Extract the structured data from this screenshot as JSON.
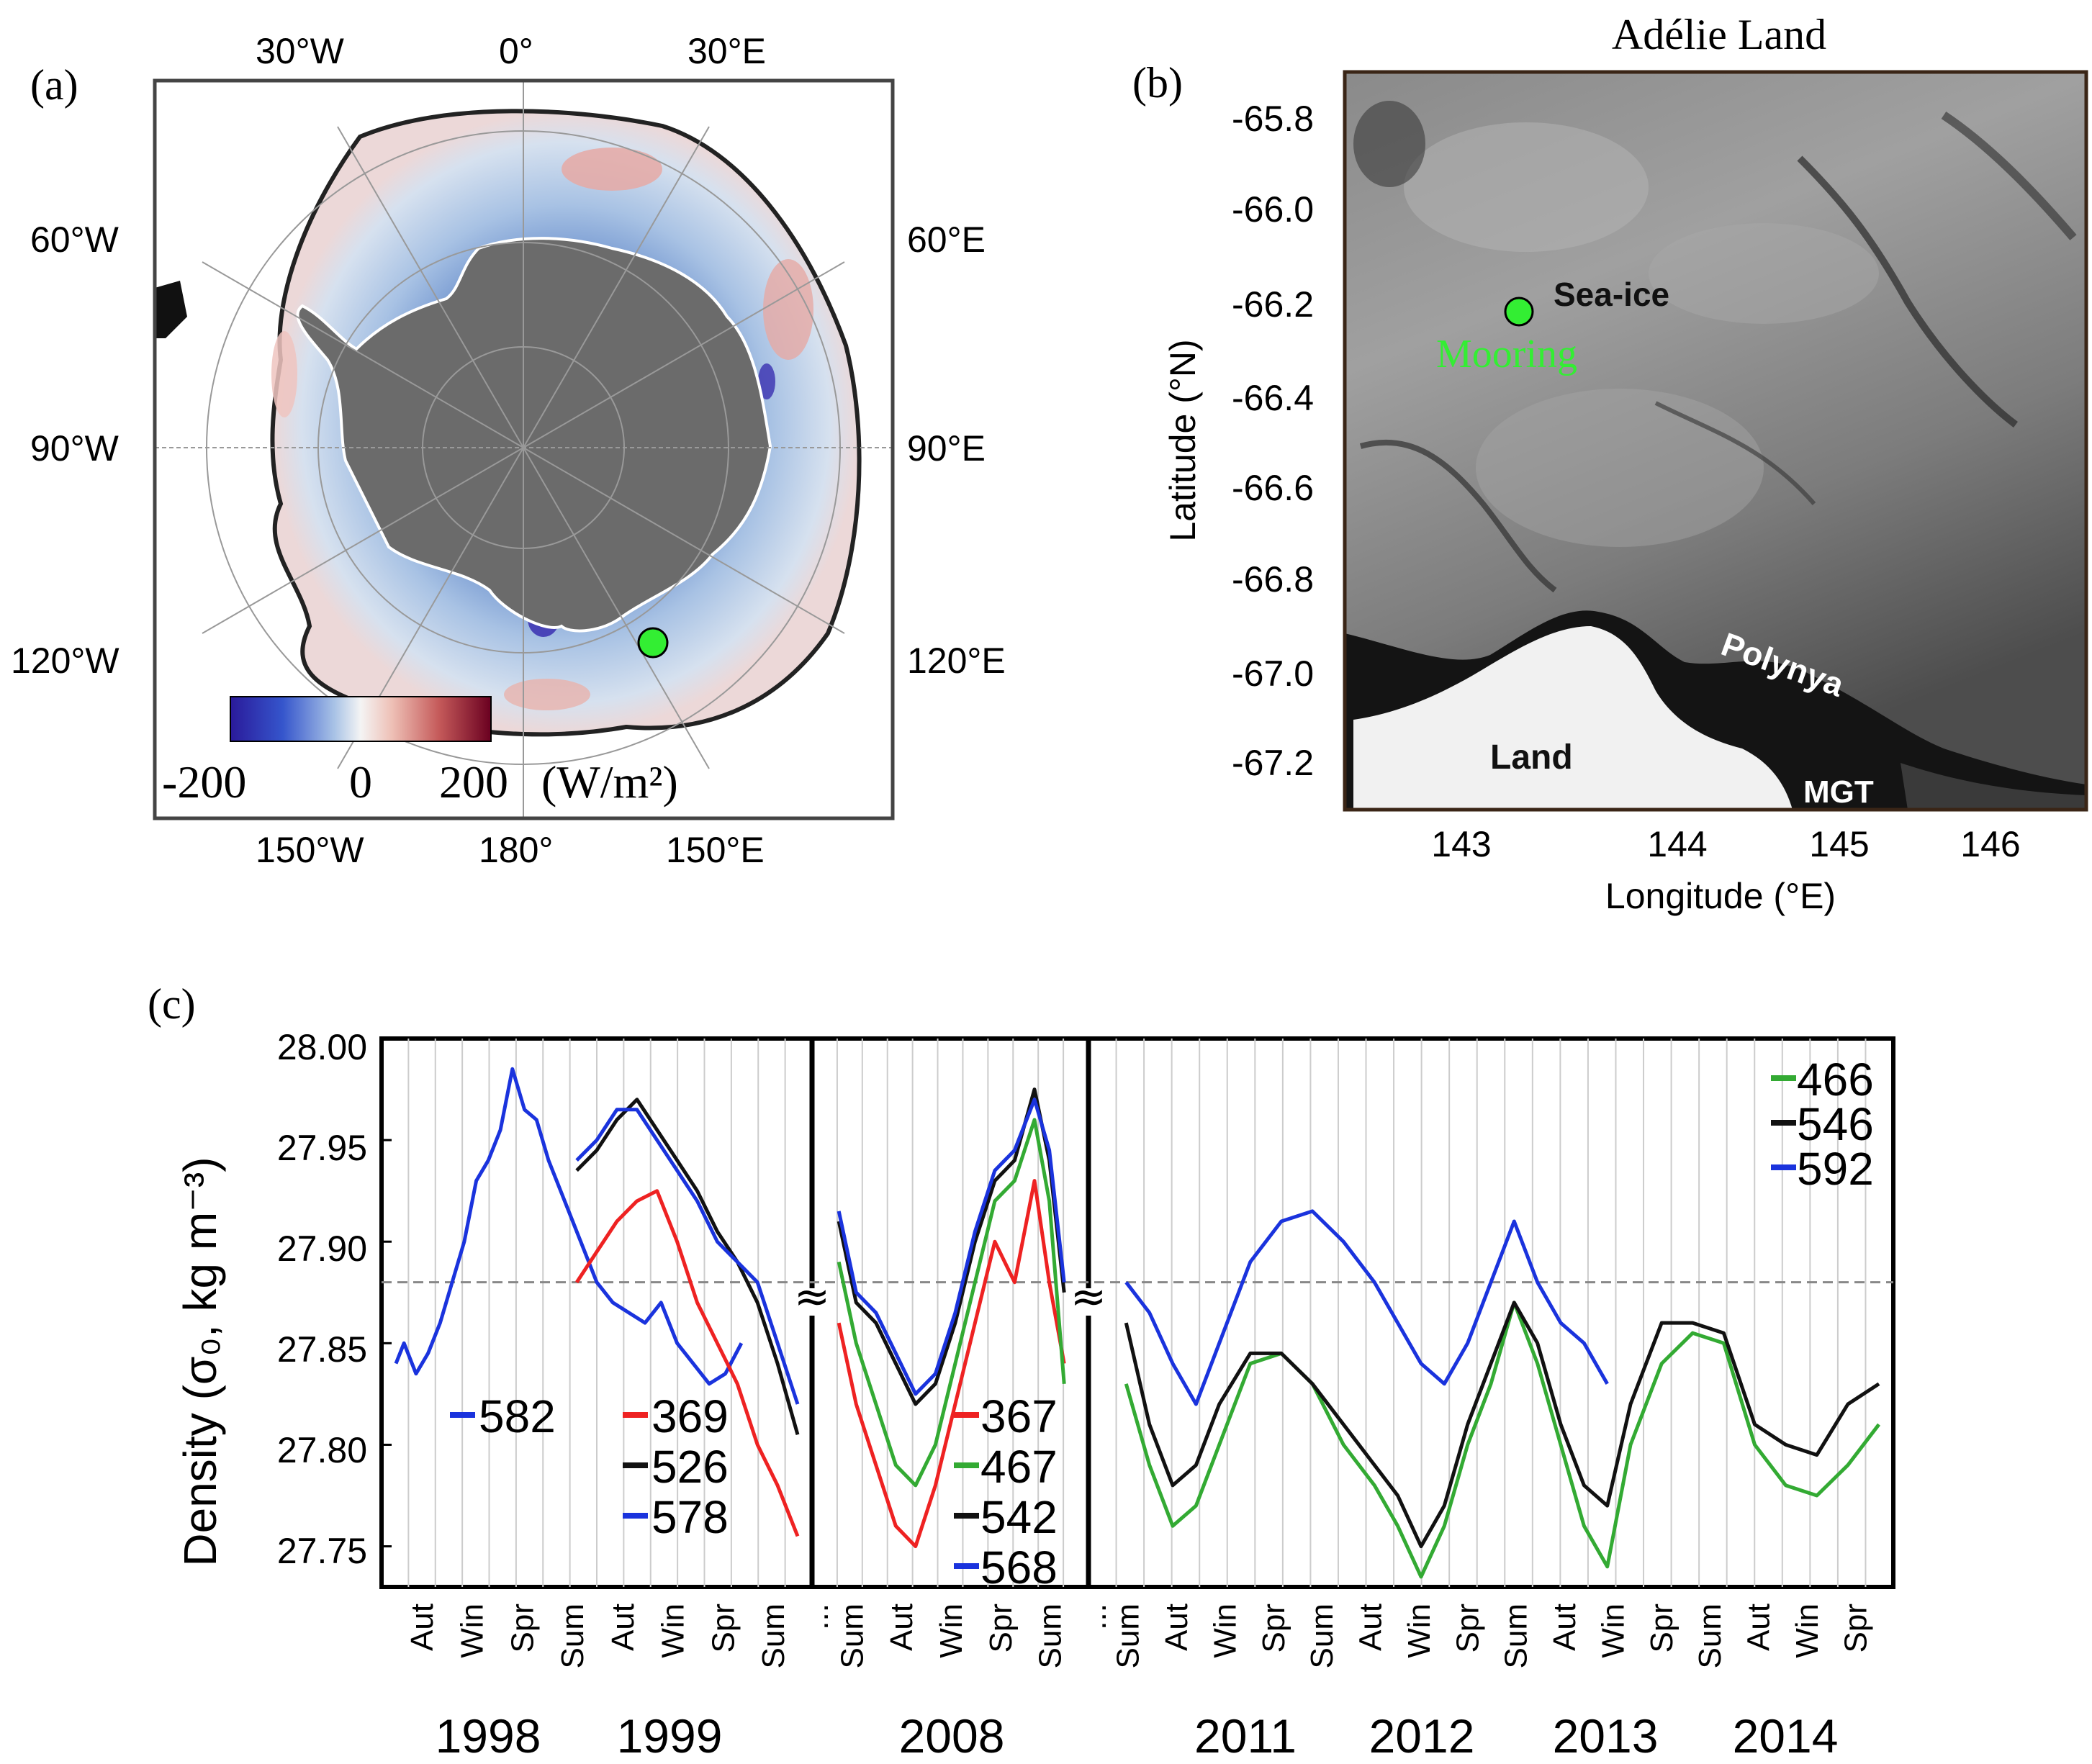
{
  "panel_a": {
    "label": "(a)",
    "lon_labels": {
      "w30": "30°W",
      "zero": "0°",
      "e30": "30°E",
      "w60": "60°W",
      "e60": "60°E",
      "w90": "90°W",
      "e90": "90°E",
      "w120": "120°W",
      "e120": "120°E",
      "w150": "150°W",
      "d180": "180°",
      "e150": "150°E"
    },
    "colorbar": {
      "min": "-200",
      "mid": "0",
      "max": "200",
      "unit": "(W/m²)"
    },
    "colors": {
      "land": "#6b6b6b",
      "cold": "#2a1a9a",
      "mid": "#f2f2f2",
      "warm": "#7a0020",
      "marker": "#33ee33"
    }
  },
  "panel_b": {
    "label": "(b)",
    "title": "Adélie Land",
    "ylabel": "Latitude (°N)",
    "xlabel": "Longitude (°E)",
    "yticks": [
      "-65.8",
      "-66.0",
      "-66.2",
      "-66.4",
      "-66.6",
      "-66.8",
      "-67.0",
      "-67.2"
    ],
    "xticks": [
      "143",
      "144",
      "145",
      "146"
    ],
    "annotations": {
      "sea_ice": "Sea-ice",
      "mooring": "Mooring",
      "polynya": "Polynya",
      "land": "Land",
      "mgt": "MGT"
    }
  },
  "chart_data": [
    {
      "type": "line",
      "title": "(c)",
      "ylabel": "Density (σ₀, kg m⁻³)",
      "ylim": [
        27.73,
        28.0
      ],
      "yticks": [
        "28.00",
        "27.95",
        "27.90",
        "27.85",
        "27.80",
        "27.75"
      ],
      "reference_line": 27.88,
      "years": [
        "1998",
        "1999",
        "2008",
        "2011",
        "2012",
        "2013",
        "2014"
      ],
      "seasons_1": [
        "Aut",
        "Win",
        "Spr",
        "Sum",
        "Aut",
        "Win",
        "Spr",
        "Sum"
      ],
      "seasons_2": [
        "Sum",
        "Aut",
        "Win",
        "Spr",
        "Sum"
      ],
      "seasons_3": [
        "Sum",
        "Aut",
        "Win",
        "Spr",
        "Sum",
        "Aut",
        "Win",
        "Spr",
        "Sum",
        "Aut",
        "Win",
        "Spr",
        "Sum",
        "Aut",
        "Win",
        "Spr"
      ],
      "ellipsis": "...",
      "segments": [
        {
          "name": "1998-1999",
          "series": [
            {
              "name": "582",
              "color": "#1a33dd",
              "x": [
                0.0,
                0.02,
                0.05,
                0.08,
                0.11,
                0.14,
                0.17,
                0.2,
                0.23,
                0.26,
                0.29,
                0.32,
                0.35,
                0.38,
                0.42,
                0.46,
                0.5,
                0.54,
                0.58,
                0.62,
                0.66,
                0.7,
                0.74,
                0.78,
                0.82,
                0.86
              ],
              "y": [
                27.84,
                27.85,
                27.835,
                27.845,
                27.86,
                27.88,
                27.9,
                27.93,
                27.94,
                27.955,
                27.985,
                27.965,
                27.96,
                27.94,
                27.92,
                27.9,
                27.88,
                27.87,
                27.865,
                27.86,
                27.87,
                27.85,
                27.84,
                27.83,
                27.835,
                27.85
              ]
            },
            {
              "name": "369",
              "color": "#ee2222",
              "x": [
                0.45,
                0.5,
                0.55,
                0.6,
                0.65,
                0.7,
                0.75,
                0.8,
                0.85,
                0.9,
                0.95,
                1.0
              ],
              "y": [
                27.88,
                27.895,
                27.91,
                27.92,
                27.925,
                27.9,
                27.87,
                27.85,
                27.83,
                27.8,
                27.78,
                27.755
              ]
            },
            {
              "name": "526",
              "color": "#111111",
              "x": [
                0.45,
                0.5,
                0.55,
                0.6,
                0.65,
                0.7,
                0.75,
                0.8,
                0.85,
                0.9,
                0.95,
                1.0
              ],
              "y": [
                27.935,
                27.945,
                27.96,
                27.97,
                27.955,
                27.94,
                27.925,
                27.905,
                27.89,
                27.87,
                27.84,
                27.805
              ]
            },
            {
              "name": "578",
              "color": "#1a33dd",
              "x": [
                0.45,
                0.5,
                0.55,
                0.6,
                0.65,
                0.7,
                0.75,
                0.8,
                0.85,
                0.9,
                0.95,
                1.0
              ],
              "y": [
                27.94,
                27.95,
                27.965,
                27.965,
                27.95,
                27.935,
                27.92,
                27.9,
                27.89,
                27.88,
                27.85,
                27.82
              ]
            }
          ],
          "legend": [
            "582",
            "369",
            "526",
            "578"
          ]
        },
        {
          "name": "2008",
          "series": [
            {
              "name": "367",
              "color": "#ee2222",
              "x": [
                0.05,
                0.12,
                0.2,
                0.28,
                0.36,
                0.44,
                0.52,
                0.6,
                0.68,
                0.76,
                0.84,
                0.9,
                0.96
              ],
              "y": [
                27.86,
                27.82,
                27.79,
                27.76,
                27.75,
                27.78,
                27.82,
                27.86,
                27.9,
                27.88,
                27.93,
                27.88,
                27.84
              ]
            },
            {
              "name": "467",
              "color": "#33aa33",
              "x": [
                0.05,
                0.12,
                0.2,
                0.28,
                0.36,
                0.44,
                0.52,
                0.6,
                0.68,
                0.76,
                0.84,
                0.9,
                0.96
              ],
              "y": [
                27.89,
                27.85,
                27.82,
                27.79,
                27.78,
                27.8,
                27.84,
                27.88,
                27.92,
                27.93,
                27.96,
                27.92,
                27.83
              ]
            },
            {
              "name": "542",
              "color": "#111111",
              "x": [
                0.05,
                0.12,
                0.2,
                0.28,
                0.36,
                0.44,
                0.52,
                0.6,
                0.68,
                0.76,
                0.84,
                0.9,
                0.96
              ],
              "y": [
                27.91,
                27.87,
                27.86,
                27.84,
                27.82,
                27.83,
                27.86,
                27.9,
                27.93,
                27.94,
                27.975,
                27.94,
                27.875
              ]
            },
            {
              "name": "568",
              "color": "#1a33dd",
              "x": [
                0.05,
                0.12,
                0.2,
                0.28,
                0.36,
                0.44,
                0.52,
                0.6,
                0.68,
                0.76,
                0.84,
                0.9,
                0.96
              ],
              "y": [
                27.915,
                27.875,
                27.865,
                27.845,
                27.825,
                27.835,
                27.865,
                27.905,
                27.935,
                27.945,
                27.97,
                27.945,
                27.88
              ]
            }
          ],
          "legend": [
            "367",
            "467",
            "542",
            "568"
          ]
        },
        {
          "name": "2011-2014",
          "series": [
            {
              "name": "466",
              "color": "#33aa33",
              "x": [
                0.03,
                0.06,
                0.09,
                0.12,
                0.15,
                0.19,
                0.23,
                0.27,
                0.31,
                0.35,
                0.38,
                0.41,
                0.44,
                0.47,
                0.5,
                0.53,
                0.56,
                0.59,
                0.62,
                0.65,
                0.68,
                0.72,
                0.76,
                0.8,
                0.84,
                0.88,
                0.92,
                0.96,
                1.0
              ],
              "y": [
                27.83,
                27.79,
                27.76,
                27.77,
                27.8,
                27.84,
                27.845,
                27.83,
                27.8,
                27.78,
                27.76,
                27.735,
                27.76,
                27.8,
                27.83,
                27.87,
                27.84,
                27.8,
                27.76,
                27.74,
                27.8,
                27.84,
                27.855,
                27.85,
                27.8,
                27.78,
                27.775,
                27.79,
                27.81
              ]
            },
            {
              "name": "546",
              "color": "#111111",
              "x": [
                0.03,
                0.06,
                0.09,
                0.12,
                0.15,
                0.19,
                0.23,
                0.27,
                0.31,
                0.35,
                0.38,
                0.41,
                0.44,
                0.47,
                0.5,
                0.53,
                0.56,
                0.59,
                0.62,
                0.65,
                0.68,
                0.72,
                0.76,
                0.8,
                0.84,
                0.88,
                0.92,
                0.96,
                1.0
              ],
              "y": [
                27.86,
                27.81,
                27.78,
                27.79,
                27.82,
                27.845,
                27.845,
                27.83,
                27.81,
                27.79,
                27.775,
                27.75,
                27.77,
                27.81,
                27.84,
                27.87,
                27.85,
                27.81,
                27.78,
                27.77,
                27.82,
                27.86,
                27.86,
                27.855,
                27.81,
                27.8,
                27.795,
                27.82,
                27.83
              ]
            },
            {
              "name": "592",
              "color": "#1a33dd",
              "x": [
                0.03,
                0.06,
                0.09,
                0.12,
                0.15,
                0.19,
                0.23,
                0.27,
                0.31,
                0.35,
                0.38,
                0.41,
                0.44,
                0.47,
                0.5,
                0.53,
                0.56,
                0.59,
                0.62,
                0.65
              ],
              "y": [
                27.88,
                27.865,
                27.84,
                27.82,
                27.85,
                27.89,
                27.91,
                27.915,
                27.9,
                27.88,
                27.86,
                27.84,
                27.83,
                27.85,
                27.88,
                27.91,
                27.88,
                27.86,
                27.85,
                27.83
              ]
            }
          ],
          "legend": [
            "466",
            "546",
            "592"
          ]
        }
      ]
    }
  ]
}
